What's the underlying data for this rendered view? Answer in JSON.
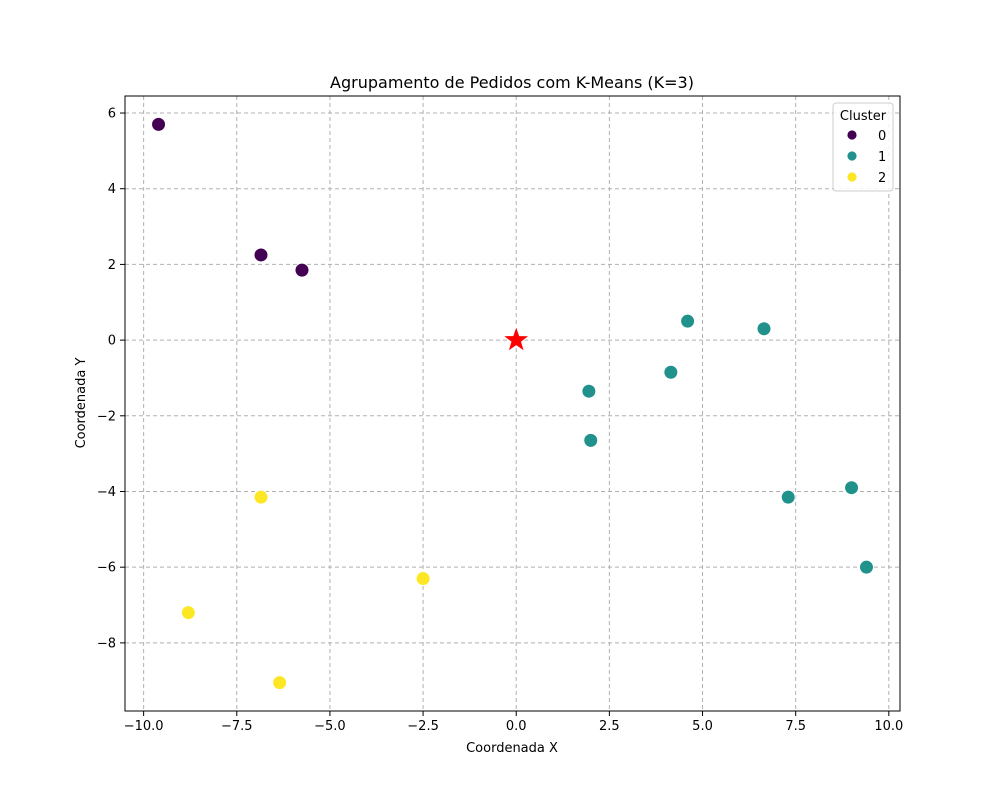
{
  "chart_data": {
    "type": "scatter",
    "title": "Agrupamento de Pedidos com K-Means (K=3)",
    "xlabel": "Coordenada X",
    "ylabel": "Coordenada Y",
    "xlim": [
      -10.5,
      10.3
    ],
    "ylim": [
      -9.8,
      6.45
    ],
    "xticks": [
      -10.0,
      -7.5,
      -5.0,
      -2.5,
      0.0,
      2.5,
      5.0,
      7.5,
      10.0
    ],
    "xtick_labels": [
      "−10.0",
      "−7.5",
      "−5.0",
      "−2.5",
      "0.0",
      "2.5",
      "5.0",
      "7.5",
      "10.0"
    ],
    "yticks": [
      -8,
      -6,
      -4,
      -2,
      0,
      2,
      4,
      6
    ],
    "ytick_labels": [
      "−8",
      "−6",
      "−4",
      "−2",
      "0",
      "2",
      "4",
      "6"
    ],
    "grid": true,
    "legend": {
      "title": "Cluster",
      "placement": "top-right",
      "entries": [
        "0",
        "1",
        "2"
      ]
    },
    "series": [
      {
        "name": "0",
        "color": "#440154",
        "points": [
          [
            -9.6,
            5.7
          ],
          [
            -6.85,
            2.25
          ],
          [
            -5.75,
            1.85
          ]
        ]
      },
      {
        "name": "1",
        "color": "#21918c",
        "points": [
          [
            4.6,
            0.5
          ],
          [
            6.65,
            0.3
          ],
          [
            4.15,
            -0.85
          ],
          [
            1.95,
            -1.35
          ],
          [
            2.0,
            -2.65
          ],
          [
            7.3,
            -4.15
          ],
          [
            9.0,
            -3.9
          ],
          [
            9.4,
            -6.0
          ]
        ]
      },
      {
        "name": "2",
        "color": "#fde725",
        "points": [
          [
            -6.85,
            -4.15
          ],
          [
            -2.5,
            -6.3
          ],
          [
            -8.8,
            -7.2
          ],
          [
            -6.35,
            -9.05
          ]
        ]
      }
    ],
    "special_marker": {
      "shape": "star",
      "color": "#ff0000",
      "point": [
        0.0,
        0.0
      ]
    }
  }
}
